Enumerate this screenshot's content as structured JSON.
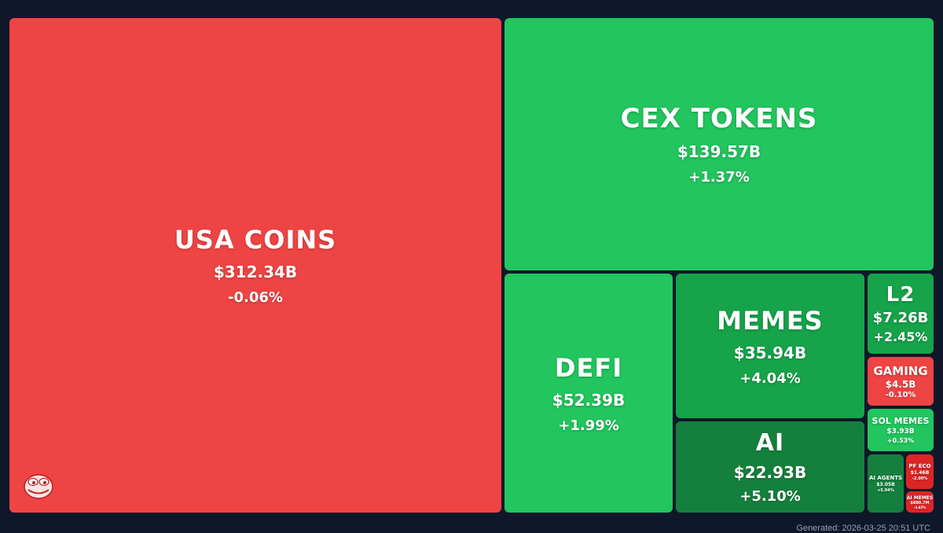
{
  "chart_data": {
    "type": "treemap",
    "tiles": [
      {
        "name": "USA COINS",
        "value_label": "$312.34B",
        "change": "-0.06%",
        "color": "#ef4444"
      },
      {
        "name": "CEX TOKENS",
        "value_label": "$139.57B",
        "change": "+1.37%",
        "color": "#22c55e"
      },
      {
        "name": "DEFI",
        "value_label": "$52.39B",
        "change": "+1.99%",
        "color": "#22c55e"
      },
      {
        "name": "MEMES",
        "value_label": "$35.94B",
        "change": "+4.04%",
        "color": "#16a34a"
      },
      {
        "name": "AI",
        "value_label": "$22.93B",
        "change": "+5.10%",
        "color": "#15803d"
      },
      {
        "name": "L2",
        "value_label": "$7.26B",
        "change": "+2.45%",
        "color": "#16a34a"
      },
      {
        "name": "GAMING",
        "value_label": "$4.5B",
        "change": "-0.10%",
        "color": "#ef4444"
      },
      {
        "name": "SOL MEMES",
        "value_label": "$3.93B",
        "change": "+0.53%",
        "color": "#22c55e"
      },
      {
        "name": "AI AGENTS",
        "value_label": "$3.05B",
        "change": "+5.94%",
        "color": "#15803d"
      },
      {
        "name": "PF ECO",
        "value_label": "$1.46B",
        "change": "-2.00%",
        "color": "#dc2626"
      },
      {
        "name": "AI MEMES",
        "value_label": "$880.7M",
        "change": "-3.65%",
        "color": "#dc2626"
      }
    ]
  },
  "footer": {
    "generated": "Generated: 2026-03-25 20:51 UTC"
  }
}
